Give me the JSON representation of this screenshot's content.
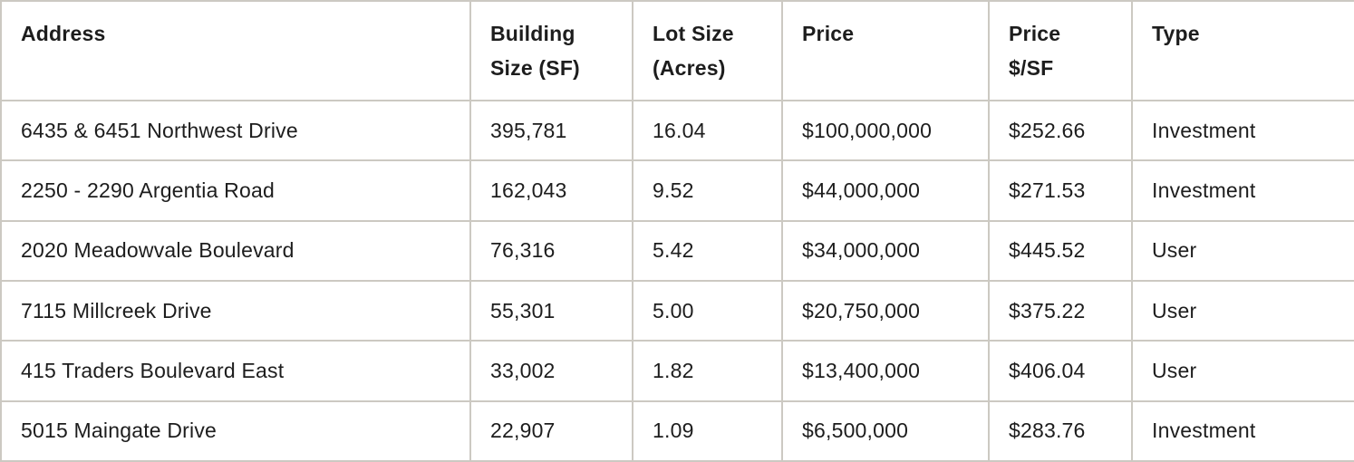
{
  "colors": {
    "border": "#ccc9c2",
    "text": "#1d1d1d",
    "background": "#ffffff"
  },
  "table": {
    "columns": [
      {
        "id": "address",
        "label": "Address"
      },
      {
        "id": "building_size_sf",
        "label": "Building\nSize (SF)"
      },
      {
        "id": "lot_size_acres",
        "label": "Lot Size\n(Acres)"
      },
      {
        "id": "price",
        "label": "Price"
      },
      {
        "id": "price_per_sf",
        "label": "Price\n$/SF"
      },
      {
        "id": "type",
        "label": "Type"
      }
    ],
    "rows": [
      {
        "address": "6435 & 6451 Northwest Drive",
        "building_size_sf": "395,781",
        "lot_size_acres": "16.04",
        "price": "$100,000,000",
        "price_per_sf": "$252.66",
        "type": "Investment"
      },
      {
        "address": "2250 - 2290 Argentia Road",
        "building_size_sf": "162,043",
        "lot_size_acres": "9.52",
        "price": "$44,000,000",
        "price_per_sf": "$271.53",
        "type": "Investment"
      },
      {
        "address": "2020 Meadowvale Boulevard",
        "building_size_sf": "76,316",
        "lot_size_acres": "5.42",
        "price": "$34,000,000",
        "price_per_sf": "$445.52",
        "type": "User"
      },
      {
        "address": "7115 Millcreek Drive",
        "building_size_sf": "55,301",
        "lot_size_acres": "5.00",
        "price": "$20,750,000",
        "price_per_sf": "$375.22",
        "type": "User"
      },
      {
        "address": "415 Traders Boulevard East",
        "building_size_sf": "33,002",
        "lot_size_acres": "1.82",
        "price": "$13,400,000",
        "price_per_sf": "$406.04",
        "type": "User"
      },
      {
        "address": "5015 Maingate Drive",
        "building_size_sf": "22,907",
        "lot_size_acres": "1.09",
        "price": "$6,500,000",
        "price_per_sf": "$283.76",
        "type": "Investment"
      }
    ]
  }
}
